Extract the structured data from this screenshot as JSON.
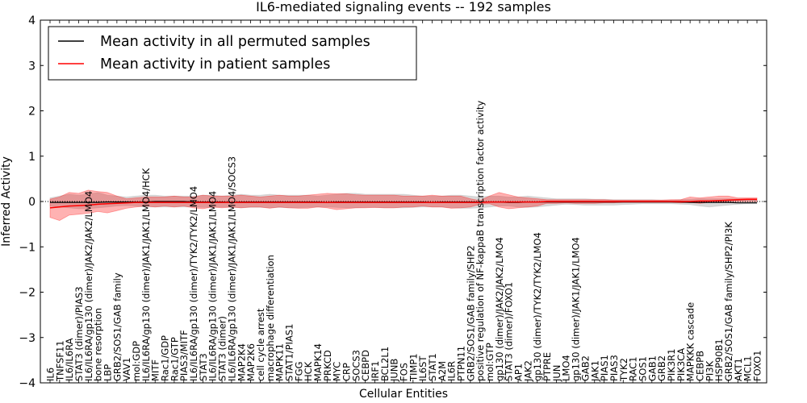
{
  "chart_data": {
    "type": "line",
    "title": "IL6-mediated signaling events -- 192 samples",
    "xlabel": "Cellular Entities",
    "ylabel": "Inferred Activity",
    "ylim": [
      -4,
      4
    ],
    "yticks": [
      4,
      3,
      2,
      1,
      0,
      -1,
      -2,
      -3,
      -4
    ],
    "ytick_labels": [
      "4",
      "3",
      "2",
      "1",
      "0",
      "−1",
      "−2",
      "−3",
      "−4"
    ],
    "legend_position": "top-left",
    "categories": [
      "IL6",
      "TNFSF11",
      "IL6/IL6RA",
      "STAT3 (dimer)/PIAS3",
      "IL6/IL6RA/gp130 (dimer)/JAK2/JAK2/LMO4",
      "bone resorption",
      "LBP",
      "GRB2/SOS1/GAB family",
      "VAV1",
      "mol:GDP",
      "IL6/IL6RA/gp130 (dimer)/JAK1/JAK1/LMO4/HCK",
      "MITF",
      "Rac1/GDP",
      "Rac1/GTP",
      "PIAS3/MITF",
      "IL6/IL6RA/gp130 (dimer)/TYK2/TYK2/LMO4",
      "STAT3",
      "IL6/IL6RA/gp130 (dimer)/JAK1/JAK1/LMO4",
      "STAT3 (dimer)",
      "IL6/IL6RA/gp130 (dimer)/JAK1/JAK1/LMO4/SOCS3",
      "MAP2K4",
      "MAP2K6",
      "cell cycle arrest",
      "macrophage differentiation",
      "MAPK11",
      "STAT1/PIAS1",
      "FGG",
      "HCK",
      "MAPK14",
      "PRKCD",
      "MYC",
      "CRP",
      "SOCS3",
      "CEBPD",
      "IRF1",
      "BCL2L1",
      "JUNB",
      "FOS",
      "TIMP1",
      "IL6ST",
      "STAT1",
      "A2M",
      "IL6R",
      "PTPN11",
      "GRB2/SOS1/GAB family/SHP2",
      "positive regulation of NF-kappaB transcription factor activity",
      "mol:GTP",
      "gp130 (dimer)/JAK2/JAK2/LMO4",
      "STAT3 (dimer)/FOXO1",
      "AP1",
      "JAK2",
      "gp130 (dimer)/TYK2/TYK2/LMO4",
      "PTPRE",
      "JUN",
      "LMO4",
      "gp130 (dimer)/JAK1/JAK1/LMO4",
      "GAB2",
      "JAK1",
      "PIAS1",
      "PIAS3",
      "TYK2",
      "RAC1",
      "SOS1",
      "GAB1",
      "GRB2",
      "PIK3R1",
      "PIK3CA",
      "MAPKKK cascade",
      "CEBPB",
      "PI3K",
      "HSP90B1",
      "GRB2/SOS1/GAB family/SHP2/PI3K",
      "AKT1",
      "MCL1",
      "FOXO1"
    ],
    "series": [
      {
        "name": "Mean activity in all permuted samples",
        "color": "#000000",
        "values": [
          -0.02,
          -0.02,
          -0.02,
          -0.02,
          -0.02,
          -0.02,
          -0.01,
          -0.01,
          -0.01,
          -0.01,
          -0.01,
          0.0,
          0.0,
          0.0,
          0.0,
          -0.01,
          -0.01,
          -0.01,
          -0.01,
          -0.02,
          -0.01,
          -0.01,
          -0.01,
          -0.01,
          -0.01,
          -0.01,
          -0.01,
          -0.01,
          -0.01,
          -0.02,
          -0.01,
          -0.01,
          -0.01,
          -0.01,
          -0.01,
          -0.01,
          -0.01,
          -0.01,
          -0.01,
          -0.01,
          -0.02,
          -0.01,
          -0.01,
          -0.01,
          -0.01,
          -0.01,
          -0.01,
          -0.01,
          -0.02,
          -0.02,
          -0.01,
          -0.01,
          -0.01,
          -0.01,
          -0.01,
          -0.01,
          -0.01,
          -0.01,
          -0.01,
          -0.01,
          -0.01,
          -0.01,
          -0.01,
          -0.01,
          -0.01,
          -0.01,
          -0.01,
          -0.02,
          -0.02,
          -0.02,
          -0.02,
          -0.02,
          -0.03,
          -0.03,
          -0.03
        ]
      },
      {
        "name": "Mean activity in patient samples",
        "color": "#ff0000",
        "values": [
          -0.14,
          -0.12,
          -0.1,
          -0.09,
          -0.08,
          -0.06,
          -0.05,
          -0.04,
          -0.03,
          -0.02,
          -0.02,
          -0.02,
          -0.02,
          -0.02,
          -0.02,
          -0.02,
          -0.02,
          -0.02,
          -0.02,
          -0.02,
          -0.02,
          -0.02,
          -0.02,
          -0.02,
          -0.02,
          -0.02,
          -0.02,
          -0.02,
          -0.02,
          -0.02,
          -0.02,
          -0.02,
          -0.02,
          -0.02,
          -0.02,
          -0.02,
          -0.02,
          -0.02,
          -0.02,
          -0.02,
          -0.02,
          -0.02,
          -0.02,
          -0.02,
          -0.02,
          -0.02,
          -0.01,
          -0.01,
          -0.01,
          -0.01,
          -0.01,
          -0.01,
          0.0,
          0.0,
          0.0,
          0.0,
          0.0,
          0.0,
          0.0,
          0.0,
          0.0,
          0.0,
          0.0,
          0.0,
          0.0,
          0.0,
          0.0,
          0.0,
          0.01,
          0.01,
          0.02,
          0.03,
          0.04,
          0.05,
          0.05
        ]
      }
    ],
    "bands": [
      {
        "name": "permuted samples spread",
        "color": "#aaaaaa",
        "lower": [
          -0.1,
          -0.12,
          -0.14,
          -0.16,
          -0.16,
          -0.14,
          -0.12,
          -0.1,
          -0.09,
          -0.1,
          -0.12,
          -0.12,
          -0.12,
          -0.12,
          -0.12,
          -0.12,
          -0.13,
          -0.13,
          -0.12,
          -0.13,
          -0.14,
          -0.13,
          -0.13,
          -0.14,
          -0.13,
          -0.14,
          -0.14,
          -0.13,
          -0.12,
          -0.12,
          -0.13,
          -0.14,
          -0.14,
          -0.13,
          -0.13,
          -0.14,
          -0.14,
          -0.14,
          -0.13,
          -0.12,
          -0.12,
          -0.12,
          -0.14,
          -0.15,
          -0.15,
          -0.14,
          -0.12,
          -0.1,
          -0.1,
          -0.12,
          -0.13,
          -0.12,
          -0.1,
          -0.08,
          -0.06,
          -0.07,
          -0.08,
          -0.08,
          -0.08,
          -0.08,
          -0.07,
          -0.06,
          -0.05,
          -0.05,
          -0.05,
          -0.05,
          -0.06,
          -0.07,
          -0.1,
          -0.12,
          -0.1,
          -0.08,
          -0.06,
          -0.05,
          -0.05
        ],
        "upper": [
          0.08,
          0.12,
          0.16,
          0.14,
          0.16,
          0.2,
          0.14,
          0.12,
          0.1,
          0.12,
          0.14,
          0.14,
          0.12,
          0.12,
          0.12,
          0.12,
          0.14,
          0.14,
          0.12,
          0.14,
          0.16,
          0.14,
          0.14,
          0.16,
          0.14,
          0.14,
          0.14,
          0.14,
          0.12,
          0.14,
          0.16,
          0.18,
          0.18,
          0.16,
          0.16,
          0.16,
          0.16,
          0.16,
          0.14,
          0.12,
          0.12,
          0.12,
          0.14,
          0.14,
          0.12,
          0.1,
          0.12,
          0.12,
          0.1,
          0.1,
          0.12,
          0.1,
          0.08,
          0.06,
          0.06,
          0.06,
          0.06,
          0.05,
          0.05,
          0.04,
          0.04,
          0.04,
          0.04,
          0.04,
          0.03,
          0.03,
          0.04,
          0.05,
          0.06,
          0.06,
          0.06,
          0.06,
          0.06,
          0.06,
          0.06
        ]
      },
      {
        "name": "patient samples spread",
        "color": "#ff0000",
        "lower": [
          -0.35,
          -0.42,
          -0.3,
          -0.28,
          -0.26,
          -0.22,
          -0.25,
          -0.2,
          -0.15,
          -0.12,
          -0.1,
          -0.12,
          -0.1,
          -0.12,
          -0.1,
          -0.14,
          -0.16,
          -0.12,
          -0.14,
          -0.12,
          -0.14,
          -0.12,
          -0.12,
          -0.15,
          -0.12,
          -0.14,
          -0.15,
          -0.15,
          -0.12,
          -0.14,
          -0.18,
          -0.16,
          -0.14,
          -0.14,
          -0.13,
          -0.14,
          -0.14,
          -0.12,
          -0.12,
          -0.1,
          -0.12,
          -0.12,
          -0.15,
          -0.14,
          -0.12,
          -0.06,
          -0.05,
          -0.12,
          -0.16,
          -0.14,
          -0.12,
          -0.1,
          -0.04,
          -0.04,
          -0.03,
          -0.04,
          -0.04,
          -0.04,
          -0.03,
          -0.03,
          -0.02,
          -0.02,
          -0.02,
          -0.02,
          -0.02,
          -0.02,
          -0.03,
          -0.02,
          -0.04,
          -0.02,
          -0.01,
          0.0,
          0.0,
          0.0,
          0.0
        ],
        "upper": [
          0.05,
          0.1,
          0.2,
          0.18,
          0.25,
          0.22,
          0.2,
          0.12,
          0.06,
          0.08,
          0.1,
          0.1,
          0.1,
          0.12,
          0.1,
          0.1,
          0.14,
          0.12,
          0.12,
          0.12,
          0.14,
          0.12,
          0.1,
          0.12,
          0.14,
          0.12,
          0.12,
          0.14,
          0.16,
          0.18,
          0.17,
          0.17,
          0.15,
          0.14,
          0.14,
          0.14,
          0.14,
          0.12,
          0.12,
          0.12,
          0.14,
          0.12,
          0.12,
          0.12,
          0.06,
          0.02,
          0.12,
          0.2,
          0.15,
          0.1,
          0.08,
          0.06,
          0.04,
          0.04,
          0.04,
          0.04,
          0.04,
          0.04,
          0.04,
          0.03,
          0.03,
          0.03,
          0.03,
          0.03,
          0.03,
          0.04,
          0.04,
          0.1,
          0.08,
          0.1,
          0.12,
          0.12,
          0.08,
          0.08,
          0.08
        ]
      }
    ]
  }
}
